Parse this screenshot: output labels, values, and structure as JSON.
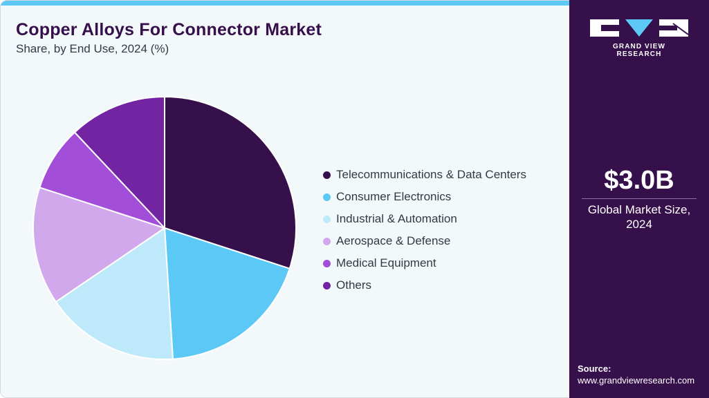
{
  "header": {
    "title": "Copper Alloys For Connector Market",
    "subtitle": "Share, by End Use, 2024 (%)"
  },
  "colors": {
    "accent_bar": "#5bc8f5",
    "sidebar_bg": "#35104a",
    "background": "#f3f8fb"
  },
  "chart_data": {
    "type": "pie",
    "title": "Copper Alloys For Connector Market",
    "subtitle": "Share, by End Use, 2024 (%)",
    "legend_position": "right",
    "slices": [
      {
        "label": "Telecommunications & Data Centers",
        "value": 30.0,
        "color": "#35104a"
      },
      {
        "label": "Consumer Electronics",
        "value": 19.0,
        "color": "#5bc8f5"
      },
      {
        "label": "Industrial & Automation",
        "value": 16.5,
        "color": "#bde9fa"
      },
      {
        "label": "Aerospace & Defense",
        "value": 14.5,
        "color": "#d1a8ec"
      },
      {
        "label": "Medical Equipment",
        "value": 8.0,
        "color": "#a34ed8"
      },
      {
        "label": "Others",
        "value": 12.0,
        "color": "#7224a2"
      }
    ]
  },
  "sidebar": {
    "logo_icon": "grand-view-research-logo",
    "logo_text": "GRAND VIEW RESEARCH",
    "market_value": "$3.0B",
    "market_label": "Global Market Size, 2024",
    "source_title": "Source:",
    "source_url": "www.grandviewresearch.com"
  }
}
